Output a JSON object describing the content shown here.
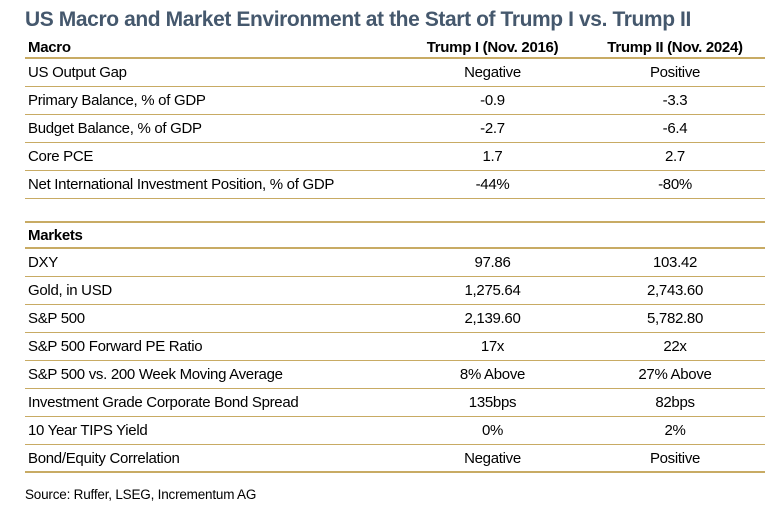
{
  "chart_data": {
    "type": "table",
    "title": "US Macro and Market Environment at the Start of Trump I vs. Trump II",
    "columns": [
      "Macro",
      "Trump I (Nov. 2016)",
      "Trump II (Nov. 2024)"
    ],
    "sections": [
      {
        "name": "Macro",
        "rows": [
          {
            "label": "US Output Gap",
            "trump1": "Negative",
            "trump2": "Positive"
          },
          {
            "label": "Primary Balance, % of GDP",
            "trump1": "-0.9",
            "trump2": "-3.3"
          },
          {
            "label": "Budget Balance, % of GDP",
            "trump1": "-2.7",
            "trump2": "-6.4"
          },
          {
            "label": "Core PCE",
            "trump1": "1.7",
            "trump2": "2.7"
          },
          {
            "label": "Net International Investment Position, % of GDP",
            "trump1": "-44%",
            "trump2": "-80%"
          }
        ]
      },
      {
        "name": "Markets",
        "rows": [
          {
            "label": "DXY",
            "trump1": "97.86",
            "trump2": "103.42"
          },
          {
            "label": "Gold, in USD",
            "trump1": "1,275.64",
            "trump2": "2,743.60"
          },
          {
            "label": "S&P 500",
            "trump1": "2,139.60",
            "trump2": "5,782.80"
          },
          {
            "label": "S&P 500 Forward PE Ratio",
            "trump1": "17x",
            "trump2": "22x"
          },
          {
            "label": "S&P 500 vs. 200 Week Moving Average",
            "trump1": "8% Above",
            "trump2": "27% Above"
          },
          {
            "label": "Investment Grade Corporate Bond Spread",
            "trump1": "135bps",
            "trump2": "82bps"
          },
          {
            "label": "10 Year TIPS Yield",
            "trump1": "0%",
            "trump2": "2%"
          },
          {
            "label": "Bond/Equity Correlation",
            "trump1": "Negative",
            "trump2": "Positive"
          }
        ]
      }
    ],
    "source": "Source: Ruffer, LSEG, Incrementum AG"
  },
  "colors": {
    "title": "#45586D",
    "rule_gold": "#C8AB64",
    "text": "#000000"
  }
}
